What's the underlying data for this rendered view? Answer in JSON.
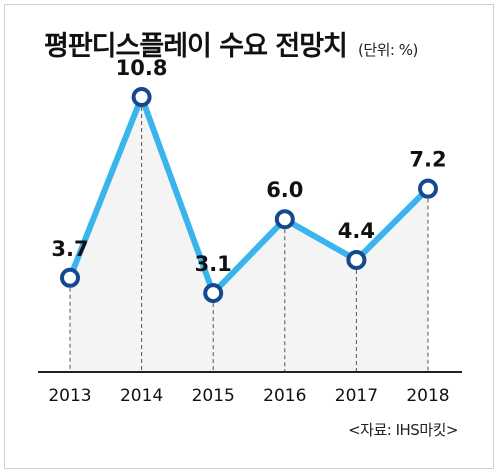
{
  "header": {
    "title": "평판디스플레이 수요 전망치",
    "unit": "(단위: %)"
  },
  "source": "<자료: IHS마킷>",
  "chart_data": {
    "type": "line",
    "title": "평판디스플레이 수요 전망치",
    "unit_label": "(단위: %)",
    "xlabel": "",
    "ylabel": "",
    "categories": [
      "2013",
      "2014",
      "2015",
      "2016",
      "2017",
      "2018"
    ],
    "series": [
      {
        "values": [
          3.7,
          10.8,
          3.1,
          6.0,
          4.4,
          7.2
        ]
      }
    ],
    "data_labels": [
      "3.7",
      "10.8",
      "3.1",
      "6.0",
      "4.4",
      "7.2"
    ],
    "ylim": [
      0,
      13
    ],
    "grid": false,
    "legend": "none",
    "colors": {
      "line": "#3ab4ec",
      "marker_stroke": "#14498f",
      "marker_fill": "#ffffff",
      "area": "#f4f4f4",
      "axis": "#222222",
      "dash": "#555555"
    }
  }
}
